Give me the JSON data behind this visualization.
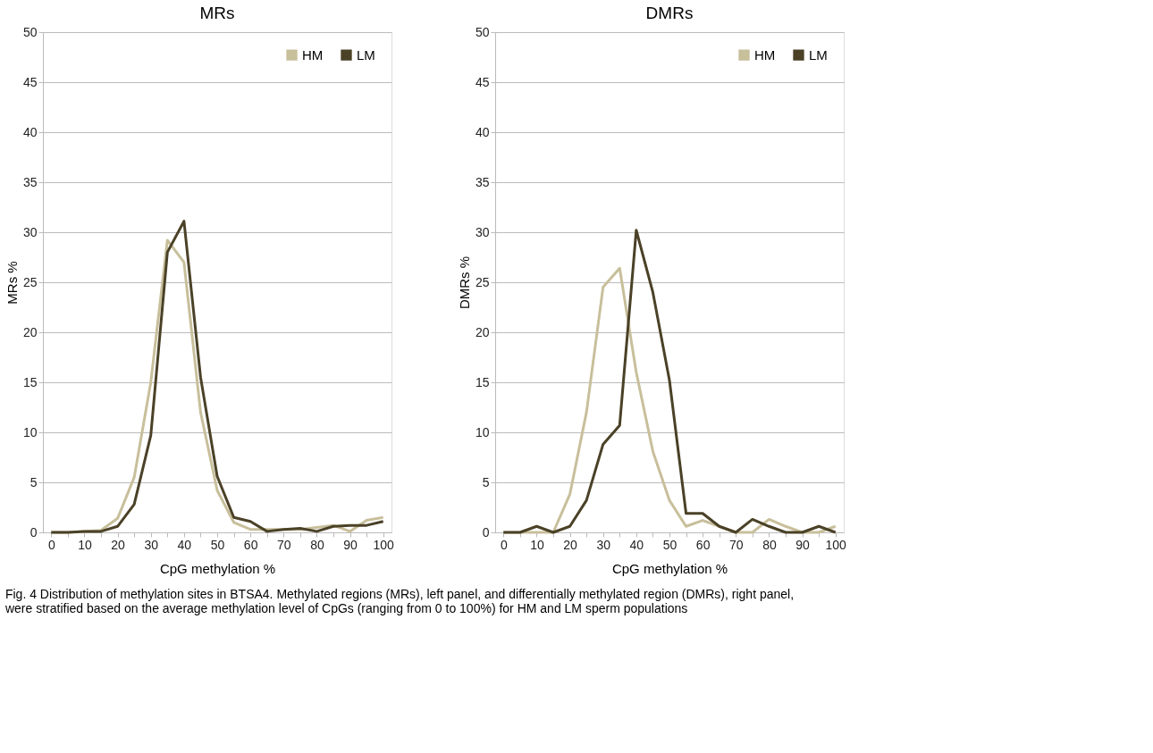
{
  "chart_data": [
    {
      "type": "line",
      "title": "MRs",
      "xlabel": "CpG methylation %",
      "ylabel": "MRs %",
      "categories": [
        "0",
        null,
        "10",
        null,
        "20",
        null,
        "30",
        null,
        "40",
        null,
        "50",
        null,
        "60",
        null,
        "70",
        null,
        "80",
        null,
        "90",
        null,
        "100"
      ],
      "ylim": [
        0,
        50
      ],
      "yticks": [
        0,
        5,
        10,
        15,
        20,
        25,
        30,
        35,
        40,
        45,
        50
      ],
      "grid": "y",
      "legend": "top right",
      "marker": "none",
      "line_style": "solid",
      "series": [
        {
          "name": "HM",
          "color": "#c8bf9b",
          "values": [
            0,
            0,
            0.1,
            0.2,
            1.4,
            5.5,
            15,
            29.2,
            27,
            12,
            4.2,
            1,
            0.3,
            0.3,
            0.3,
            0.3,
            0.5,
            0.7,
            0.1,
            1.2,
            1.5
          ]
        },
        {
          "name": "LM",
          "color": "#4a4127",
          "values": [
            0,
            0,
            0.1,
            0.1,
            0.6,
            2.8,
            9.7,
            28,
            31.1,
            15.5,
            5.6,
            1.5,
            1.1,
            0.1,
            0.3,
            0.4,
            0.1,
            0.6,
            0.7,
            0.7,
            1.1
          ]
        }
      ]
    },
    {
      "type": "line",
      "title": "DMRs",
      "xlabel": "CpG methylation %",
      "ylabel": "DMRs %",
      "categories": [
        "0",
        null,
        "10",
        null,
        "20",
        null,
        "30",
        null,
        "40",
        null,
        "50",
        null,
        "60",
        null,
        "70",
        null,
        "80",
        null,
        "90",
        null,
        "100"
      ],
      "ylim": [
        0,
        50
      ],
      "yticks": [
        0,
        5,
        10,
        15,
        20,
        25,
        30,
        35,
        40,
        45,
        50
      ],
      "grid": "y",
      "legend": "top right",
      "marker": "none",
      "line_style": "solid",
      "annotations": [
        "Fig. 4 Distribution of methylation sites in BTSA4. Methylated regions (MRs), left panel, and differentially methylated region (DMRs), right panel, were stratified based on the average methylation level of CpGs (ranging from 0 to 100%) for HM and LM sperm populations"
      ],
      "series": [
        {
          "name": "HM",
          "color": "#c8bf9b",
          "values": [
            0,
            0,
            0,
            0,
            3.8,
            12,
            24.5,
            26.4,
            16,
            8.1,
            3.2,
            0.6,
            1.2,
            0.6,
            0,
            0,
            1.3,
            0.6,
            0,
            0,
            0.6
          ]
        },
        {
          "name": "LM",
          "color": "#4a4127",
          "values": [
            0,
            0,
            0.6,
            0,
            0.6,
            3.2,
            8.8,
            10.7,
            30.2,
            24,
            15.2,
            1.9,
            1.9,
            0.6,
            0,
            1.3,
            0.6,
            0,
            0,
            0.6,
            0
          ]
        }
      ]
    }
  ]
}
